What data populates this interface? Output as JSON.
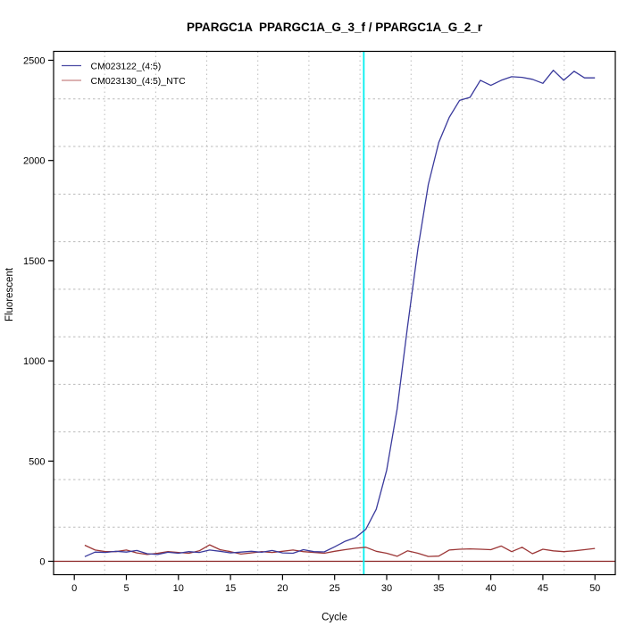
{
  "chart_data": {
    "type": "line",
    "title": "PPARGC1A  PPARGC1A_G_3_f / PPARGC1A_G_2_r",
    "xlabel": "Cycle",
    "ylabel": "Fluorescent",
    "x_ticks": [
      0,
      5,
      10,
      15,
      20,
      25,
      30,
      35,
      40,
      45,
      50
    ],
    "y_ticks": [
      0,
      500,
      1000,
      1500,
      2000,
      2500
    ],
    "xlim": [
      -2,
      53
    ],
    "ylim": [
      -67,
      2545
    ],
    "grid": {
      "on": true,
      "nx": 11,
      "ny": 11,
      "color": "#bbbbbb",
      "style": "dotted"
    },
    "legend": {
      "position": "top-left",
      "entries": [
        {
          "label": "CM023122_(4:5)",
          "swatch_color": "#4A4AA4"
        },
        {
          "label": "CM023130_(4:5)_NTC",
          "swatch_color": "#C68585"
        }
      ]
    },
    "x": [
      1,
      2,
      3,
      4,
      5,
      6,
      7,
      8,
      9,
      10,
      11,
      12,
      13,
      14,
      15,
      16,
      17,
      18,
      19,
      20,
      21,
      22,
      23,
      24,
      25,
      26,
      27,
      28,
      29,
      30,
      31,
      32,
      33,
      34,
      35,
      36,
      37,
      38,
      39,
      40,
      41,
      42,
      43,
      44,
      45,
      46,
      47,
      48,
      49,
      50
    ],
    "series": [
      {
        "name": "CM023122_(4:5)",
        "color": "#3A3A9C",
        "values": [
          23,
          46,
          44,
          50,
          46,
          54,
          38,
          34,
          45,
          40,
          48,
          44,
          56,
          50,
          42,
          46,
          50,
          45,
          54,
          42,
          40,
          58,
          48,
          47,
          72,
          100,
          118,
          160,
          260,
          455,
          760,
          1170,
          1560,
          1880,
          2090,
          2215,
          2300,
          2315,
          2400,
          2375,
          2400,
          2418,
          2415,
          2405,
          2385,
          2450,
          2400,
          2445,
          2412,
          2412
        ]
      },
      {
        "name": "CM023130_(4:5)_NTC",
        "color": "#9C3636",
        "values": [
          80,
          56,
          48,
          48,
          56,
          42,
          34,
          40,
          48,
          44,
          40,
          52,
          82,
          58,
          48,
          36,
          42,
          48,
          44,
          50,
          56,
          48,
          44,
          40,
          50,
          58,
          65,
          70,
          50,
          40,
          25,
          52,
          40,
          24,
          26,
          56,
          60,
          62,
          60,
          58,
          76,
          48,
          70,
          38,
          60,
          52,
          48,
          52,
          58,
          64
        ]
      }
    ],
    "threshold_line": {
      "y": 0,
      "color": "#8B2424"
    },
    "ct_line": {
      "x": 27.8,
      "color": "#00EFEF"
    },
    "box_color": "#000000"
  }
}
